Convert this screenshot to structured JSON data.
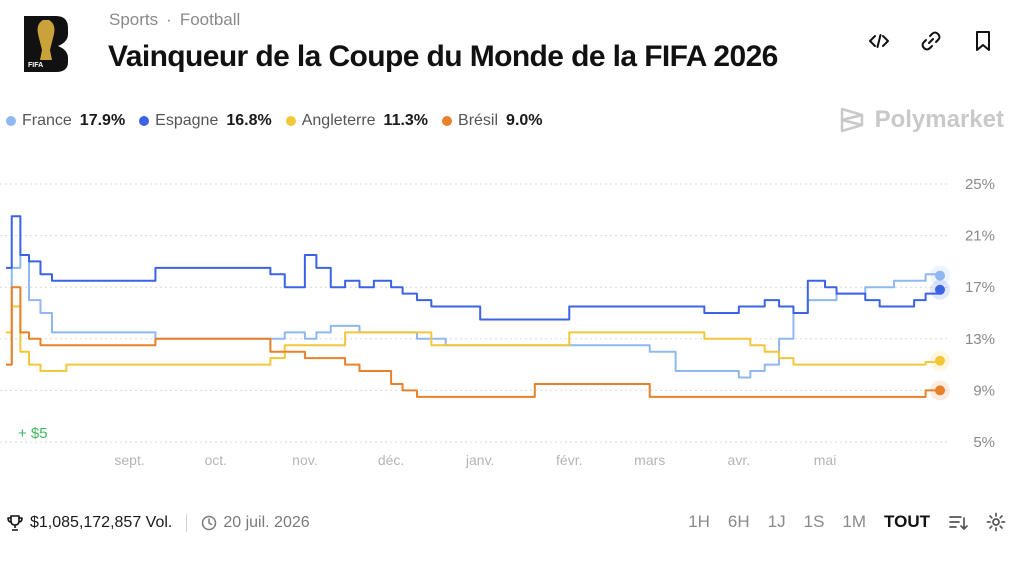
{
  "breadcrumb": {
    "category": "Sports",
    "separator": "·",
    "subcategory": "Football"
  },
  "title": "Vainqueur de la Coupe du Monde de la FIFA 2026",
  "logo_text": "FIFA",
  "brand": "Polymarket",
  "icons": {
    "embed": "code-icon",
    "link": "link-icon",
    "bookmark": "bookmark-icon",
    "volume": "trophy-icon",
    "date": "clock-icon",
    "sort": "sort-icon",
    "settings": "gear-icon"
  },
  "colors": {
    "France": "#8FB8F0",
    "Espagne": "#3B63E6",
    "Angleterre": "#F2C739",
    "Brésil": "#E9802A",
    "gain": "#3DB85A"
  },
  "annotation": "+ $5",
  "footer": {
    "volume": "$1,085,172,857 Vol.",
    "end_date": "20 juil. 2026"
  },
  "time_ranges": [
    "1H",
    "6H",
    "1J",
    "1S",
    "1M",
    "TOUT"
  ],
  "active_range": "TOUT",
  "chart_data": {
    "type": "line",
    "x_labels": [
      "sept.",
      "oct.",
      "nov.",
      "déc.",
      "janv.",
      "févr.",
      "mars",
      "avr.",
      "mai"
    ],
    "y_ticks": [
      "25%",
      "21%",
      "17%",
      "13%",
      "9%",
      "5%"
    ],
    "ylim": [
      5,
      25
    ],
    "x": [
      "07-20",
      "07-22",
      "07-25",
      "07-28",
      "08-01",
      "08-05",
      "08-10",
      "08-15",
      "08-20",
      "08-25",
      "09-01",
      "09-05",
      "09-10",
      "09-15",
      "09-20",
      "09-25",
      "10-01",
      "10-05",
      "10-10",
      "10-15",
      "10-20",
      "10-25",
      "11-01",
      "11-05",
      "11-10",
      "11-15",
      "11-20",
      "11-25",
      "12-01",
      "12-05",
      "12-10",
      "12-15",
      "12-20",
      "12-25",
      "01-01",
      "01-10",
      "01-20",
      "02-01",
      "02-10",
      "02-20",
      "03-01",
      "03-10",
      "03-20",
      "04-01",
      "04-05",
      "04-10",
      "04-15",
      "04-20",
      "04-25",
      "05-01",
      "05-05",
      "05-10",
      "05-15",
      "05-20",
      "05-25",
      "06-01",
      "06-05",
      "06-10"
    ],
    "series": [
      {
        "name": "France",
        "label": "17.9%",
        "values": [
          11.0,
          18.5,
          19.5,
          16.0,
          15.0,
          13.5,
          13.5,
          13.5,
          13.5,
          13.5,
          13.5,
          13.5,
          13.0,
          13.0,
          13.0,
          13.0,
          13.0,
          13.0,
          13.0,
          13.0,
          13.0,
          13.5,
          13.0,
          13.5,
          14.0,
          14.0,
          13.5,
          13.5,
          13.5,
          13.5,
          13.0,
          13.0,
          12.5,
          12.5,
          12.5,
          12.5,
          12.5,
          12.5,
          12.5,
          12.5,
          12.0,
          10.5,
          10.5,
          10.0,
          10.5,
          11.0,
          13.0,
          15.0,
          16.0,
          16.0,
          16.5,
          16.5,
          17.0,
          17.0,
          17.5,
          17.5,
          18.0,
          17.9
        ]
      },
      {
        "name": "Espagne",
        "label": "16.8%",
        "values": [
          18.5,
          22.5,
          19.5,
          19.0,
          18.0,
          17.5,
          17.5,
          17.5,
          17.5,
          17.5,
          17.5,
          17.5,
          18.5,
          18.5,
          18.5,
          18.5,
          18.5,
          18.5,
          18.5,
          18.5,
          18.0,
          17.0,
          19.5,
          18.5,
          17.0,
          17.5,
          17.0,
          17.5,
          17.0,
          16.5,
          16.0,
          15.5,
          15.5,
          15.5,
          14.5,
          14.5,
          14.5,
          15.5,
          15.5,
          15.5,
          15.5,
          15.5,
          15.0,
          15.5,
          15.5,
          16.0,
          15.5,
          15.0,
          17.5,
          17.0,
          16.5,
          16.5,
          16.0,
          15.5,
          15.5,
          16.0,
          16.5,
          16.8
        ]
      },
      {
        "name": "Angleterre",
        "label": "11.3%",
        "values": [
          13.5,
          15.5,
          12.0,
          11.0,
          10.5,
          10.5,
          11.0,
          11.0,
          11.0,
          11.0,
          11.0,
          11.0,
          11.0,
          11.0,
          11.0,
          11.0,
          11.0,
          11.0,
          11.0,
          11.0,
          11.5,
          12.5,
          12.5,
          12.5,
          12.5,
          13.5,
          13.5,
          13.5,
          13.5,
          13.5,
          13.5,
          12.5,
          12.5,
          12.5,
          12.5,
          12.5,
          12.5,
          13.5,
          13.5,
          13.5,
          13.5,
          13.5,
          13.0,
          13.0,
          12.5,
          12.0,
          11.5,
          11.0,
          11.0,
          11.0,
          11.0,
          11.0,
          11.0,
          11.0,
          11.0,
          11.0,
          11.2,
          11.3
        ]
      },
      {
        "name": "Brésil",
        "label": "9.0%",
        "values": [
          11.0,
          17.0,
          13.5,
          13.0,
          12.5,
          12.5,
          12.5,
          12.5,
          12.5,
          12.5,
          12.5,
          12.5,
          13.0,
          13.0,
          13.0,
          13.0,
          13.0,
          13.0,
          13.0,
          13.0,
          12.0,
          12.0,
          11.5,
          11.5,
          11.5,
          11.0,
          10.5,
          10.5,
          9.5,
          9.0,
          8.5,
          8.5,
          8.5,
          8.5,
          8.5,
          8.5,
          9.5,
          9.5,
          9.5,
          9.5,
          8.5,
          8.5,
          8.5,
          8.5,
          8.5,
          8.5,
          8.5,
          8.5,
          8.5,
          8.5,
          8.5,
          8.5,
          8.5,
          8.5,
          8.5,
          8.5,
          9.0,
          9.0
        ]
      }
    ]
  }
}
